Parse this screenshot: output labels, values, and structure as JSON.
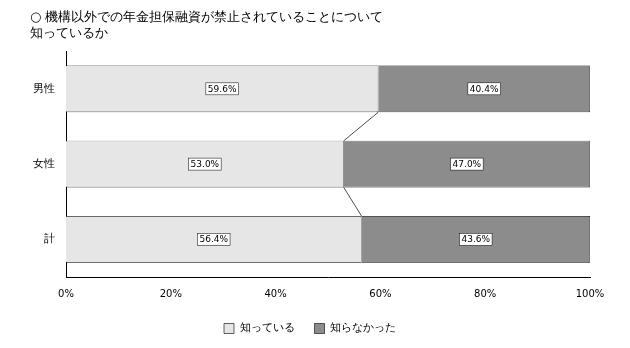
{
  "chart_data": {
    "type": "bar",
    "orientation": "horizontal",
    "stacked": true,
    "title": [
      "○ 機構以外での年金担保融資が禁止されていることについて",
      "知っているか"
    ],
    "categories": [
      "男性",
      "女性",
      "計"
    ],
    "series": [
      {
        "name": "知っている",
        "color": "#e6e6e6",
        "values": [
          59.6,
          53.0,
          56.4
        ],
        "value_labels": [
          "59.6%",
          "53.0%",
          "56.4%"
        ]
      },
      {
        "name": "知らなかった",
        "color": "#8c8c8c",
        "values": [
          40.4,
          47.0,
          43.6
        ],
        "value_labels": [
          "40.4%",
          "47.0%",
          "43.6%"
        ]
      }
    ],
    "xlim": [
      0,
      100
    ],
    "xticks": [
      {
        "value": 0,
        "label": "0%"
      },
      {
        "value": 20,
        "label": "20%"
      },
      {
        "value": 40,
        "label": "40%"
      },
      {
        "value": 60,
        "label": "60%"
      },
      {
        "value": 80,
        "label": "80%"
      },
      {
        "value": 100,
        "label": "100%"
      }
    ],
    "grid": false,
    "legend": "bottom",
    "data_labels": true
  }
}
